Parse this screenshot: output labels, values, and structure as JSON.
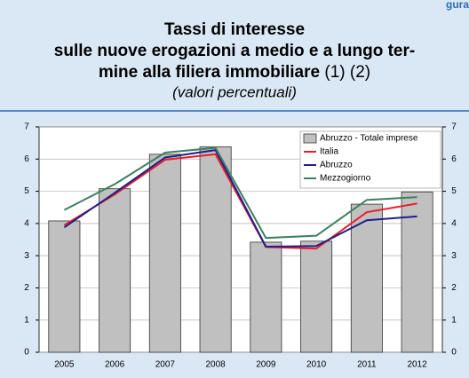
{
  "chart_data": {
    "type": "bar_line",
    "corner_label": "gura",
    "title": [
      "Tassi di interesse",
      "sulle nuove erogazioni a medio e a lungo ter-",
      "mine alla filiera immobiliare"
    ],
    "title_notes": "(1) (2)",
    "subtitle": "(valori percentuali)",
    "categories": [
      "2005",
      "2006",
      "2007",
      "2008",
      "2009",
      "2010",
      "2011",
      "2012"
    ],
    "series": [
      {
        "name": "Abruzzo - Totale imprese",
        "type": "bar",
        "color": "#c0c0c0",
        "values": [
          4.08,
          5.08,
          6.15,
          6.38,
          3.42,
          3.45,
          4.6,
          4.98
        ]
      },
      {
        "name": "Italia",
        "type": "line",
        "color": "#e8202a",
        "values": [
          3.95,
          4.9,
          5.98,
          6.15,
          3.27,
          3.22,
          4.35,
          4.62
        ]
      },
      {
        "name": "Abruzzo",
        "type": "line",
        "color": "#1f1f8c",
        "values": [
          3.88,
          4.95,
          6.05,
          6.28,
          3.28,
          3.3,
          4.1,
          4.22
        ]
      },
      {
        "name": "Mezzogiorno",
        "type": "line",
        "color": "#3e8060",
        "values": [
          4.42,
          5.22,
          6.2,
          6.35,
          3.55,
          3.62,
          4.73,
          4.82
        ]
      }
    ],
    "ylim": [
      0,
      7
    ],
    "yticks": [
      0,
      1,
      2,
      3,
      4,
      5,
      6,
      7
    ],
    "y2lim": [
      0,
      7
    ],
    "y2ticks": [
      0,
      1,
      2,
      3,
      4,
      5,
      6,
      7
    ],
    "grid": true,
    "legend": "upper right"
  }
}
